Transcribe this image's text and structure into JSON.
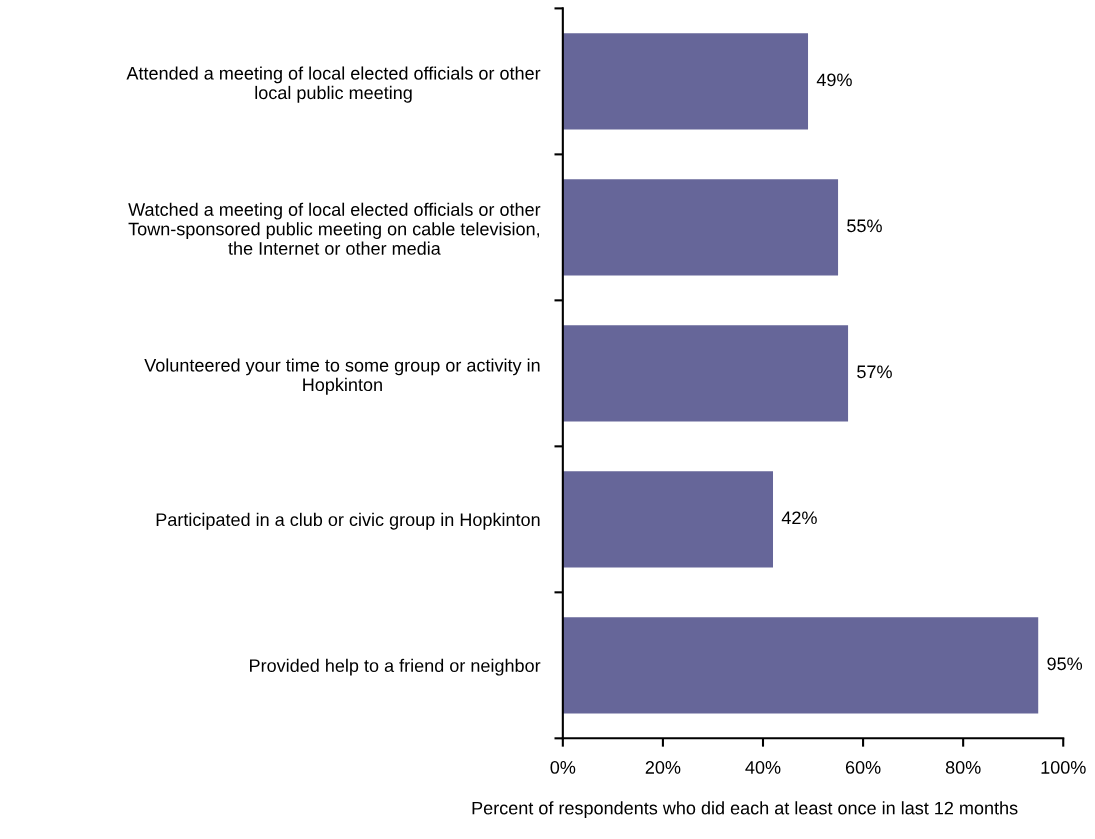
{
  "chart_data": {
    "type": "bar",
    "orientation": "horizontal",
    "categories": [
      "Attended a meeting of local elected officials or other\nlocal public meeting",
      "Watched a meeting of local elected officials or other\nTown-sponsored public meeting on cable television,\nthe Internet or other media",
      "Volunteered your time to some group or activity in\nHopkinton",
      "Participated in a club or civic group in Hopkinton",
      "Provided help to a friend or neighbor"
    ],
    "values": [
      49,
      55,
      57,
      42,
      95
    ],
    "value_labels": [
      "49%",
      "55%",
      "57%",
      "42%",
      "95%"
    ],
    "color": "#666699",
    "xlabel": "Percent of respondents who did each at least once in last 12 months",
    "xlim": [
      0,
      100
    ],
    "xticks": [
      {
        "value": 0,
        "label": "0%"
      },
      {
        "value": 20,
        "label": "20%"
      },
      {
        "value": 40,
        "label": "40%"
      },
      {
        "value": 60,
        "label": "60%"
      },
      {
        "value": 80,
        "label": "80%"
      },
      {
        "value": 100,
        "label": "100%"
      }
    ],
    "grid": false,
    "legend": false
  }
}
